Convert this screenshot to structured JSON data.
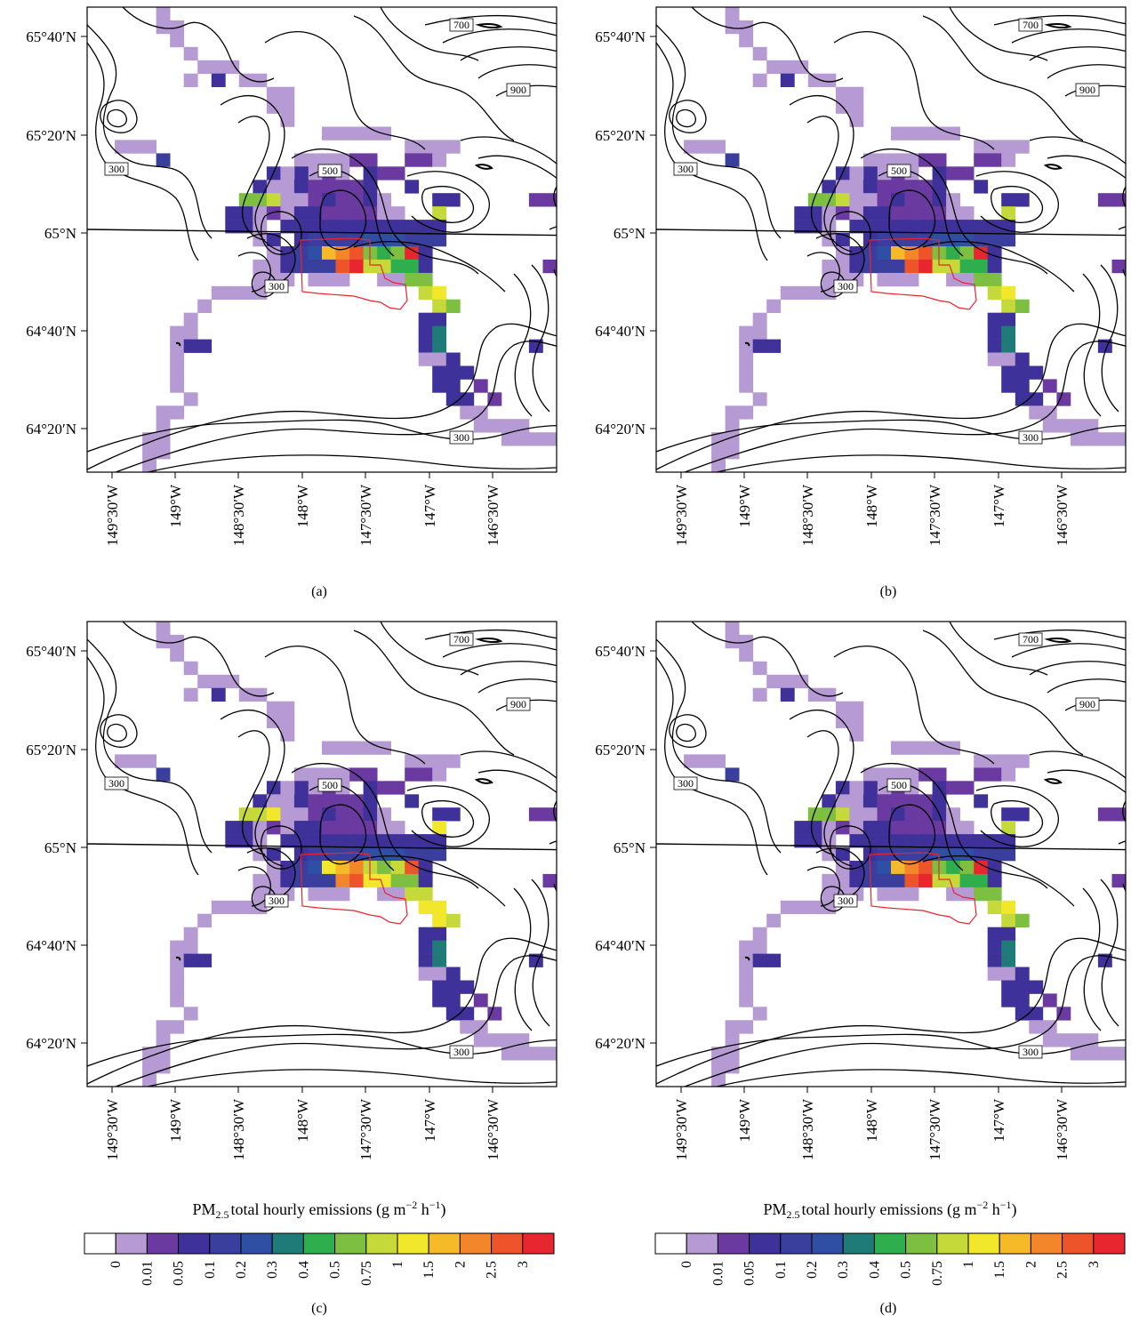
{
  "figure": {
    "panel_labels": [
      "(a)",
      "(b)",
      "(c)",
      "(d)"
    ],
    "lat_labels": [
      "65°40′N",
      "65°20′N",
      "65°N",
      "64°40′N",
      "64°20′N"
    ],
    "lon_labels": [
      "149°30′W",
      "149°W",
      "148°30′W",
      "148°W",
      "147°30′W",
      "147°W",
      "146°30′W"
    ],
    "contour_labels": [
      "700",
      "900",
      "300",
      "500",
      "300",
      "300"
    ],
    "colorbar_title": "PM2.5 total hourly emissions (g m−2 h−1)",
    "colorbar_title_parts": {
      "pm": "PM",
      "sub": "2.5",
      "rest": "total hourly emissions (g m",
      "exp1": "−2",
      "mid": " h",
      "exp2": "−1",
      "end": ")"
    },
    "colorbar_ticks": [
      "0",
      "0.01",
      "0.05",
      "0.1",
      "0.2",
      "0.3",
      "0.4",
      "0.5",
      "0.75",
      "1",
      "1.5",
      "2",
      "2.5",
      "3"
    ],
    "colorbar_colors": [
      "#ffffff",
      "#b59ad3",
      "#6a3aa0",
      "#3e3199",
      "#3a3f9e",
      "#2f4fa5",
      "#1e7b78",
      "#2fae4e",
      "#7dbf40",
      "#c6d93a",
      "#f1e82c",
      "#f6b928",
      "#f3862a",
      "#ed5429",
      "#e8262f"
    ],
    "colors": {
      "contour": "#000000",
      "fire_perimeter": "#e8262f"
    }
  }
}
